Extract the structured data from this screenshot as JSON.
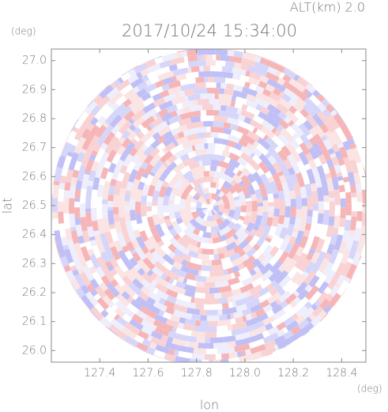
{
  "chart_data": {
    "type": "radar-field",
    "title": "2017/10/24 15:34:00",
    "subtitle": "ALT(km) 2.0",
    "x_label": "lon",
    "y_label": "lat",
    "x_unit": "(deg)",
    "y_unit": "(deg)",
    "xlim": [
      127.2,
      128.5
    ],
    "ylim": [
      25.96,
      27.04
    ],
    "xticks": [
      127.4,
      127.6,
      127.8,
      {
        "value": 128.0,
        "label": "128.0"
      },
      128.2,
      128.4
    ],
    "yticks": [
      {
        "value": 26.0,
        "label": "26.0"
      },
      26.1,
      26.2,
      26.3,
      26.4,
      26.5,
      26.6,
      26.7,
      26.8,
      26.9,
      {
        "value": 27.0,
        "label": "27.0"
      }
    ]
  }
}
